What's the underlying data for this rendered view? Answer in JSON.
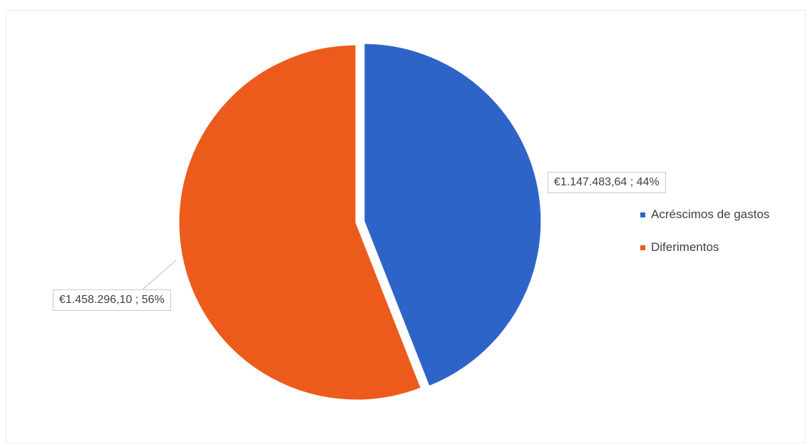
{
  "chart_data": {
    "type": "pie",
    "title": "",
    "slices": [
      {
        "name": "Acréscimos de gastos",
        "value": 1147483.64,
        "percent": 44,
        "label": "€1.147.483,64 ; 44%",
        "color": "#2e64c8",
        "exploded": true
      },
      {
        "name": "Diferimentos",
        "value": 1458296.1,
        "percent": 56,
        "label": "€1.458.296,10 ; 56%",
        "color": "#ec5b1c",
        "exploded": false
      }
    ],
    "legend_position": "right"
  }
}
